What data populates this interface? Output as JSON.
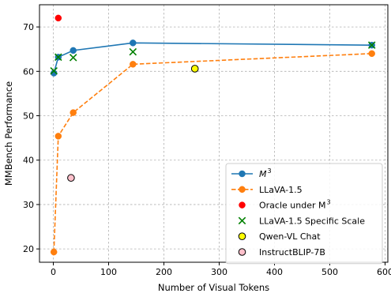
{
  "chart_data": {
    "type": "line",
    "xlabel": "Number of Visual Tokens",
    "ylabel": "MMBench Performance",
    "xlim": [
      -25,
      605
    ],
    "ylim": [
      17,
      75
    ],
    "xticks": [
      0,
      100,
      200,
      300,
      400,
      500,
      600
    ],
    "yticks": [
      20,
      30,
      40,
      50,
      60,
      70
    ],
    "grid": true,
    "legend_position": "lower-right",
    "series": [
      {
        "name": "M³",
        "name_display": "M",
        "name_sup": "3",
        "style": "line-solid-circle",
        "color": "#1f77b4",
        "x": [
          1,
          9,
          36,
          144,
          576
        ],
        "y": [
          59.6,
          63.2,
          64.7,
          66.4,
          65.9
        ]
      },
      {
        "name": "LLaVA-1.5",
        "style": "line-dashed-circle",
        "color": "#ff7f0e",
        "x": [
          1,
          9,
          36,
          144,
          576
        ],
        "y": [
          19.3,
          45.4,
          50.7,
          61.6,
          64.0
        ]
      },
      {
        "name": "Oracle under M³",
        "name_display": "Oracle under M",
        "name_sup": "3",
        "style": "scatter-circle",
        "color": "#ff0000",
        "x": [
          9
        ],
        "y": [
          72.0
        ]
      },
      {
        "name": "LLaVA-1.5 Specific Scale",
        "style": "scatter-x",
        "color": "#008000",
        "x": [
          1,
          9,
          36,
          144,
          576
        ],
        "y": [
          60.1,
          63.2,
          63.1,
          64.4,
          65.9
        ]
      },
      {
        "name": "Qwen-VL Chat",
        "style": "scatter-circle-outlined",
        "color": "#ffff00",
        "x": [
          256
        ],
        "y": [
          60.6
        ]
      },
      {
        "name": "InstructBLIP-7B",
        "style": "scatter-circle-outlined",
        "color": "#ffc0cb",
        "x": [
          32
        ],
        "y": [
          36.0
        ]
      }
    ]
  }
}
